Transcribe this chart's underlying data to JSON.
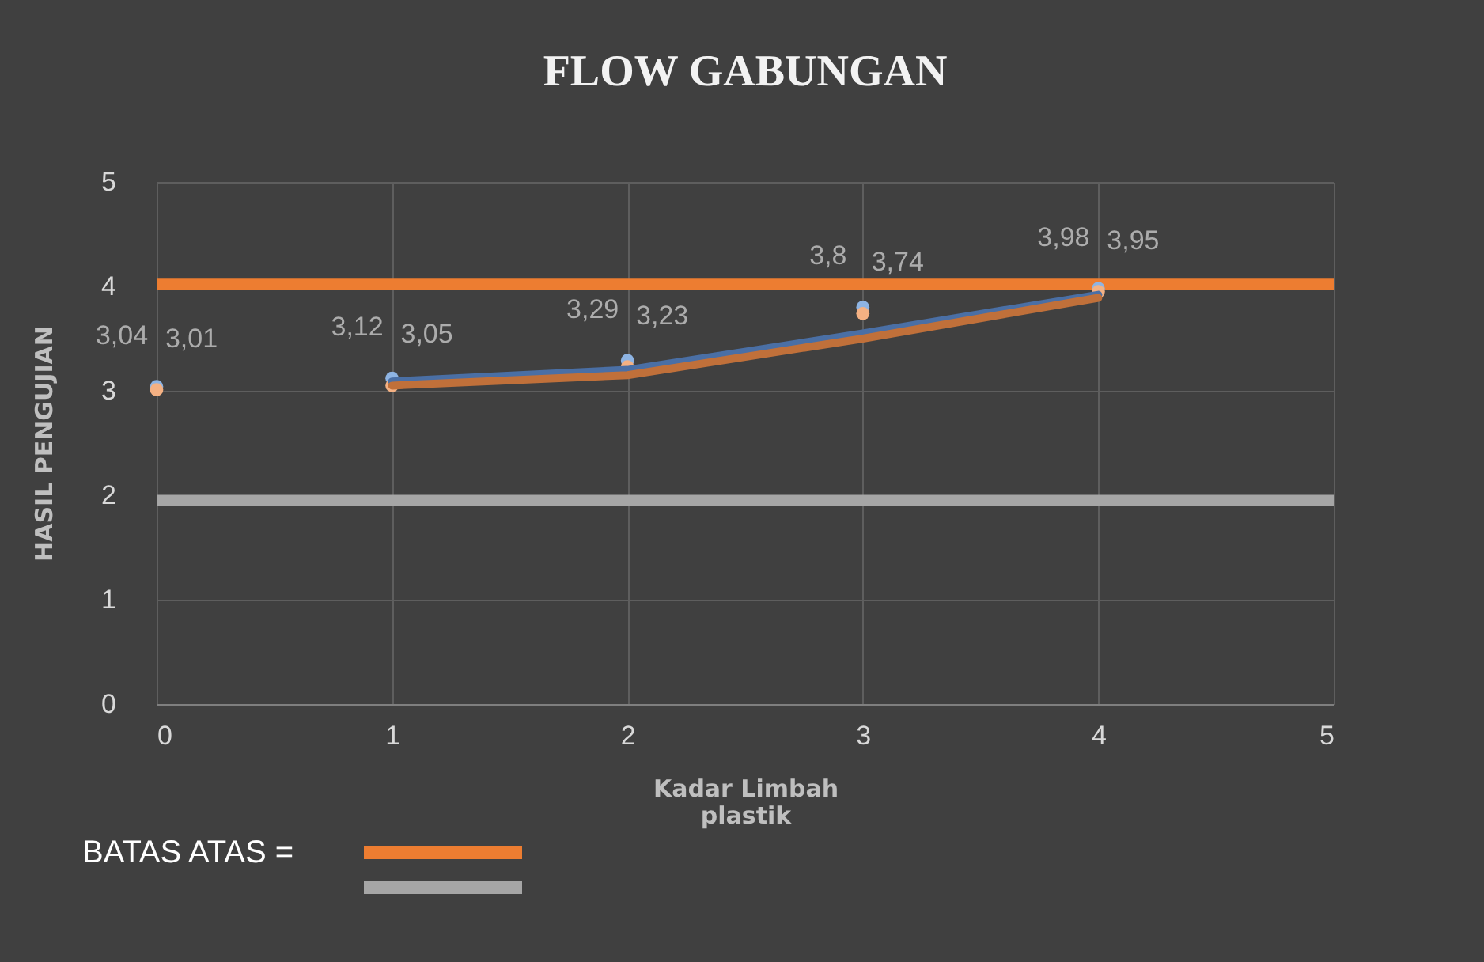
{
  "chart_data": {
    "type": "scatter",
    "title": "FLOW GABUNGAN",
    "xlabel": "Kadar Limbah plastik",
    "ylabel": "HASIL PENGUJIAN",
    "x": [
      0,
      1,
      2,
      3,
      4
    ],
    "series": [
      {
        "color": "#8eb4e3",
        "values": [
          3.04,
          3.12,
          3.29,
          3.8,
          3.98
        ],
        "value_labels": [
          "3,04",
          "3,12",
          "3,29",
          "3,8",
          "3,98"
        ]
      },
      {
        "color": "#f4b183",
        "values": [
          3.01,
          3.05,
          3.23,
          3.74,
          3.95
        ],
        "value_labels": [
          "3,01",
          "3,05",
          "3,23",
          "3,74",
          "3,95"
        ]
      },
      {
        "type": "line",
        "marker": "none",
        "color": "#4a6fa5",
        "x": [
          1,
          2,
          3,
          4
        ],
        "values": [
          3.09,
          3.2,
          3.55,
          3.92
        ]
      },
      {
        "type": "line",
        "marker": "none",
        "color": "#c0703a",
        "x": [
          1,
          2,
          3,
          4
        ],
        "values": [
          3.05,
          3.15,
          3.5,
          3.89
        ]
      }
    ],
    "ref_lines": [
      {
        "axis": "y",
        "value": 4.02,
        "label": "BATAS ATAS =",
        "color": "#ed7d31"
      },
      {
        "axis": "y",
        "value": 1.95,
        "label": null,
        "color": "#a6a6a6"
      }
    ],
    "xlim": [
      0,
      5
    ],
    "ylim": [
      0,
      5
    ],
    "xticks": [
      0,
      1,
      2,
      3,
      4,
      5
    ],
    "yticks": [
      0,
      1,
      2,
      3,
      4,
      5
    ],
    "grid": true,
    "marker": "circle"
  }
}
